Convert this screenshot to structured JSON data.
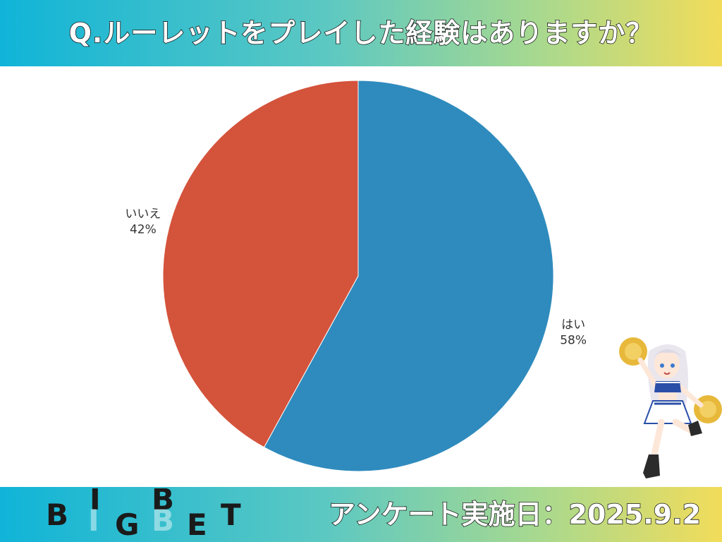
{
  "header": {
    "title": "Q.ルーレットをプレイした経験はありますか？"
  },
  "footer": {
    "logo_text": "BIGBET",
    "survey_date": "アンケート実施日：2025.9.2"
  },
  "colors": {
    "yes": "#2f8bbd",
    "no": "#d4533b",
    "banner_start": "#10b4d8",
    "banner_end": "#f2dc5a"
  },
  "chart_data": {
    "type": "pie",
    "title": "Q.ルーレットをプレイした経験はありますか？",
    "slices": [
      {
        "label": "はい",
        "value": 58,
        "value_label": "58%",
        "color": "#2f8bbd"
      },
      {
        "label": "いいえ",
        "value": 42,
        "value_label": "42%",
        "color": "#d4533b"
      }
    ],
    "start_angle_deg": 0,
    "direction": "clockwise",
    "legend": "none"
  }
}
